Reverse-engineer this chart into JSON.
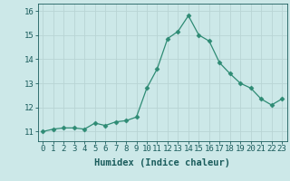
{
  "x": [
    0,
    1,
    2,
    3,
    4,
    5,
    6,
    7,
    8,
    9,
    10,
    11,
    12,
    13,
    14,
    15,
    16,
    17,
    18,
    19,
    20,
    21,
    22,
    23
  ],
  "y": [
    11.0,
    11.1,
    11.15,
    11.15,
    11.1,
    11.35,
    11.25,
    11.4,
    11.45,
    11.6,
    12.8,
    13.6,
    14.85,
    15.15,
    15.8,
    15.0,
    14.75,
    13.85,
    13.4,
    13.0,
    12.8,
    12.35,
    12.1,
    12.35
  ],
  "line_color": "#2e8b74",
  "marker": "D",
  "marker_size": 2.5,
  "bg_color": "#cce8e8",
  "grid_color": "#b8d4d4",
  "tick_color": "#1a5c5c",
  "label_color": "#1a5c5c",
  "xlabel": "Humidex (Indice chaleur)",
  "ylim": [
    10.6,
    16.3
  ],
  "xlim": [
    -0.5,
    23.5
  ],
  "yticks": [
    11,
    12,
    13,
    14,
    15,
    16
  ],
  "xticks": [
    0,
    1,
    2,
    3,
    4,
    5,
    6,
    7,
    8,
    9,
    10,
    11,
    12,
    13,
    14,
    15,
    16,
    17,
    18,
    19,
    20,
    21,
    22,
    23
  ],
  "xtick_labels": [
    "0",
    "1",
    "2",
    "3",
    "4",
    "5",
    "6",
    "7",
    "8",
    "9",
    "10",
    "11",
    "12",
    "13",
    "14",
    "15",
    "16",
    "17",
    "18",
    "19",
    "20",
    "21",
    "22",
    "23"
  ],
  "font_size_tick": 6.5,
  "font_size_label": 7.5
}
